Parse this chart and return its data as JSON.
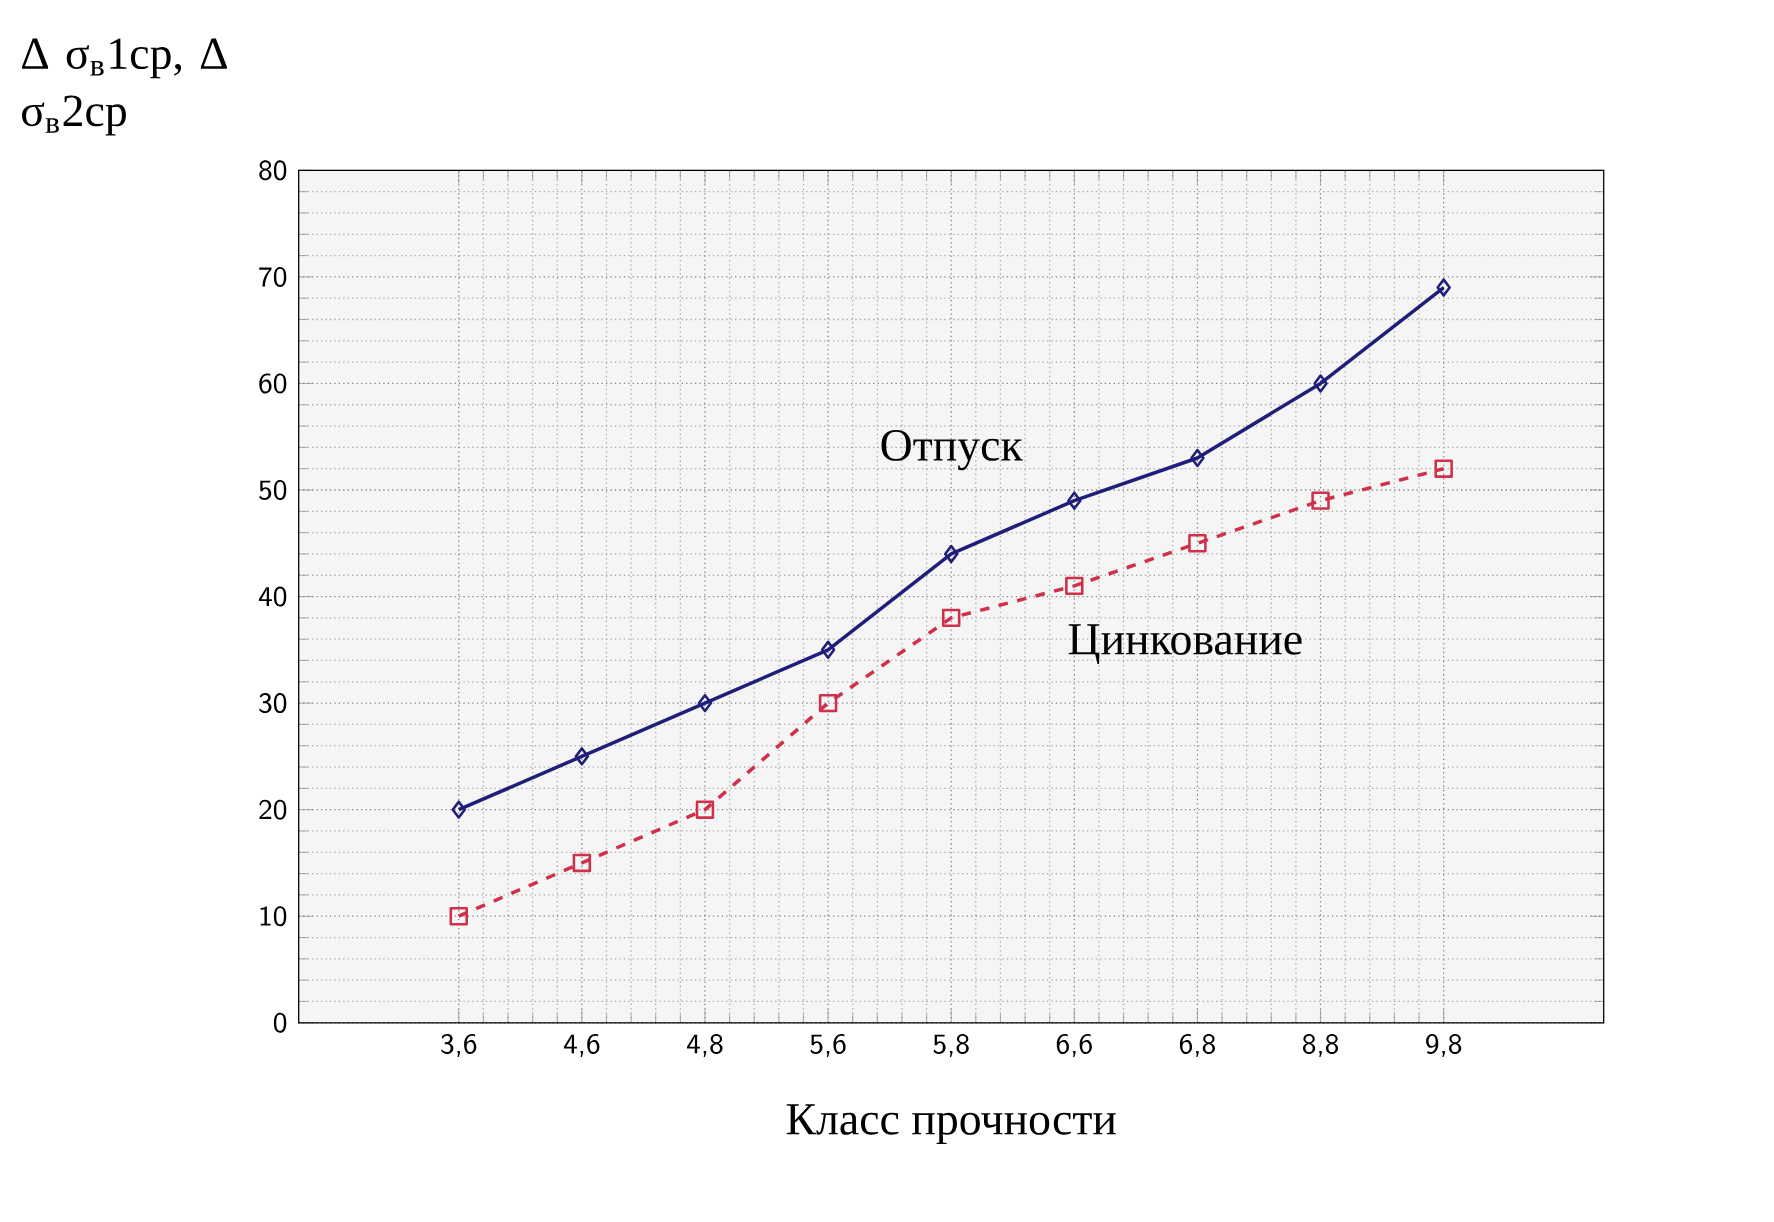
{
  "chart_data": {
    "type": "line",
    "xlabel": "Класс прочности",
    "ylabel": "Δ σ$_{в}$1ср, Δ σ$_{в}$2ср",
    "categories": [
      "3,6",
      "4,6",
      "4,8",
      "5,6",
      "5,8",
      "6,6",
      "6,8",
      "8,8",
      "9,8"
    ],
    "series": [
      {
        "name": "Отпуск",
        "color": "#1f1f7a",
        "values": [
          20,
          25,
          30,
          35,
          44,
          49,
          53,
          60,
          69
        ],
        "marker": "diamond",
        "line_style": "solid"
      },
      {
        "name": "Цинкование",
        "color": "#d0304a",
        "values": [
          10,
          15,
          20,
          30,
          38,
          41,
          45,
          49,
          52
        ],
        "marker": "square",
        "line_style": "dashed"
      }
    ],
    "ylim": [
      0,
      80
    ],
    "yticks": [
      0,
      10,
      20,
      30,
      40,
      50,
      60,
      70,
      80
    ],
    "grid": true
  }
}
